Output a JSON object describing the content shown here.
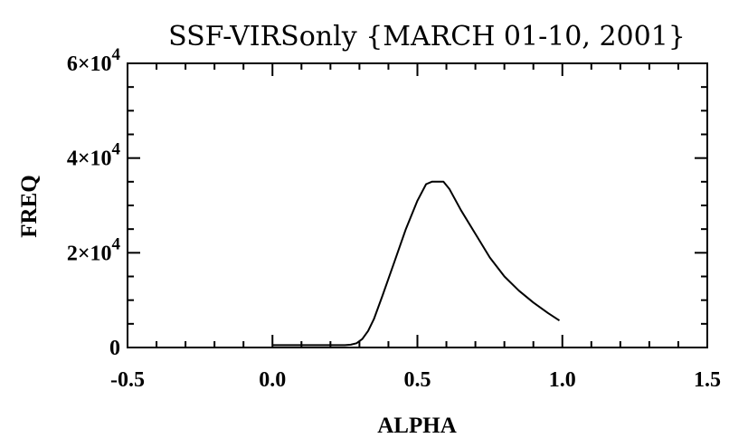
{
  "chart_data": {
    "type": "line",
    "title": "SSF-VIRSonly {MARCH 01-10, 2001}",
    "xlabel": "ALPHA",
    "ylabel": "FREQ",
    "xlim": [
      -0.5,
      1.5
    ],
    "ylim": [
      0,
      60000
    ],
    "x_ticks": [
      -0.5,
      0.0,
      0.5,
      1.0,
      1.5
    ],
    "x_tick_labels": [
      "-0.5",
      "0.0",
      "0.5",
      "1.0",
      "1.5"
    ],
    "y_ticks": [
      0,
      20000,
      40000,
      60000
    ],
    "y_tick_labels": [
      {
        "mantissa": "0",
        "exponent": ""
      },
      {
        "mantissa": "2×10",
        "exponent": "4"
      },
      {
        "mantissa": "4×10",
        "exponent": "4"
      },
      {
        "mantissa": "6×10",
        "exponent": "4"
      }
    ],
    "x_minor_step": 0.1,
    "y_minor_step": 5000,
    "grid": false,
    "series": [
      {
        "x": [
          0.0,
          0.05,
          0.1,
          0.15,
          0.2,
          0.25,
          0.27,
          0.29,
          0.31,
          0.33,
          0.35,
          0.38,
          0.42,
          0.46,
          0.5,
          0.53,
          0.55,
          0.57,
          0.59,
          0.61,
          0.65,
          0.7,
          0.75,
          0.8,
          0.85,
          0.9,
          0.95,
          0.99
        ],
        "y": [
          500,
          500,
          500,
          500,
          500,
          500,
          600,
          900,
          1800,
          3500,
          6000,
          11000,
          18000,
          25000,
          31000,
          34500,
          35000,
          35000,
          35000,
          33500,
          29000,
          24000,
          19000,
          15000,
          12000,
          9500,
          7300,
          5700
        ]
      }
    ]
  }
}
